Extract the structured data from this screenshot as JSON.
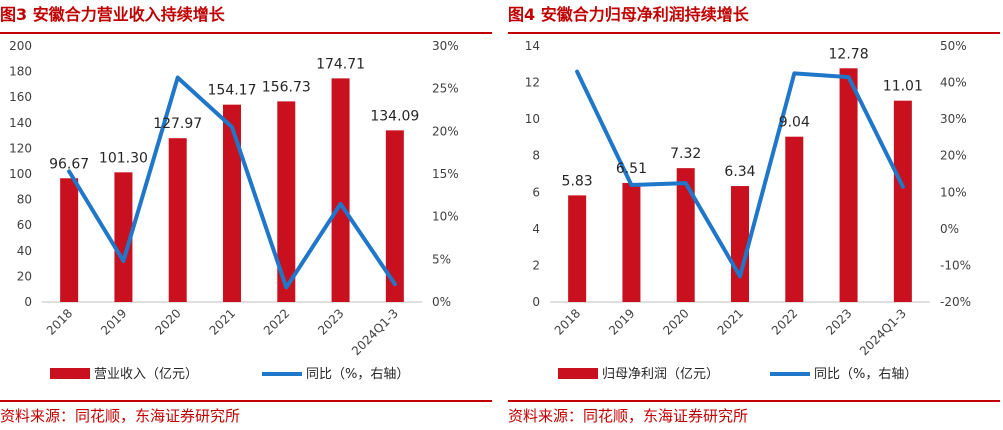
{
  "charts": [
    {
      "title": "图3  安徽合力营业收入持续增长",
      "source": "资料来源：同花顺，东海证券研究所"
    },
    {
      "title": "图4  安徽合力归母净利润持续增长",
      "source": "资料来源：同花顺，东海证券研究所"
    }
  ],
  "colors": {
    "bar": "#c8101e",
    "line": "#1f77c9",
    "title": "#c00000"
  },
  "chart_data": [
    {
      "type": "bar",
      "categories": [
        "2018",
        "2019",
        "2020",
        "2021",
        "2022",
        "2023",
        "2024Q1-3"
      ],
      "series": [
        {
          "name": "营业收入（亿元）",
          "type": "bar",
          "axis": "left",
          "values": [
            96.67,
            101.3,
            127.97,
            154.17,
            156.73,
            174.71,
            134.09
          ]
        },
        {
          "name": "同比（%，右轴）",
          "type": "line",
          "axis": "right",
          "values": [
            15.3,
            4.8,
            26.3,
            20.5,
            1.7,
            11.5,
            2.1
          ]
        }
      ],
      "data_labels": [
        "96.67",
        "101.30",
        "127.97",
        "154.17",
        "156.73",
        "174.71",
        "134.09"
      ],
      "y_left": {
        "min": 0,
        "max": 200,
        "ticks": [
          "0",
          "20",
          "40",
          "60",
          "80",
          "100",
          "120",
          "140",
          "160",
          "180",
          "200"
        ]
      },
      "y_right": {
        "min": 0,
        "max": 30,
        "ticks": [
          "0%",
          "5%",
          "10%",
          "15%",
          "20%",
          "25%",
          "30%"
        ]
      },
      "legend_position": "bottom",
      "grid": false
    },
    {
      "type": "bar",
      "categories": [
        "2018",
        "2019",
        "2020",
        "2021",
        "2022",
        "2023",
        "2024Q1-3"
      ],
      "series": [
        {
          "name": "归母净利润（亿元）",
          "type": "bar",
          "axis": "left",
          "values": [
            5.83,
            6.51,
            7.32,
            6.34,
            9.04,
            12.78,
            11.01
          ]
        },
        {
          "name": "同比（%，右轴）",
          "type": "line",
          "axis": "right",
          "values": [
            43,
            12,
            12.5,
            -13,
            42.5,
            41.5,
            11.5
          ]
        }
      ],
      "data_labels": [
        "5.83",
        "6.51",
        "7.32",
        "6.34",
        "9.04",
        "12.78",
        "11.01"
      ],
      "y_left": {
        "min": 0,
        "max": 14,
        "ticks": [
          "0",
          "2",
          "4",
          "6",
          "8",
          "10",
          "12",
          "14"
        ]
      },
      "y_right": {
        "min": -20,
        "max": 50,
        "ticks": [
          "-20%",
          "-10%",
          "0%",
          "10%",
          "20%",
          "30%",
          "40%",
          "50%"
        ]
      },
      "legend_position": "bottom",
      "grid": false
    }
  ]
}
